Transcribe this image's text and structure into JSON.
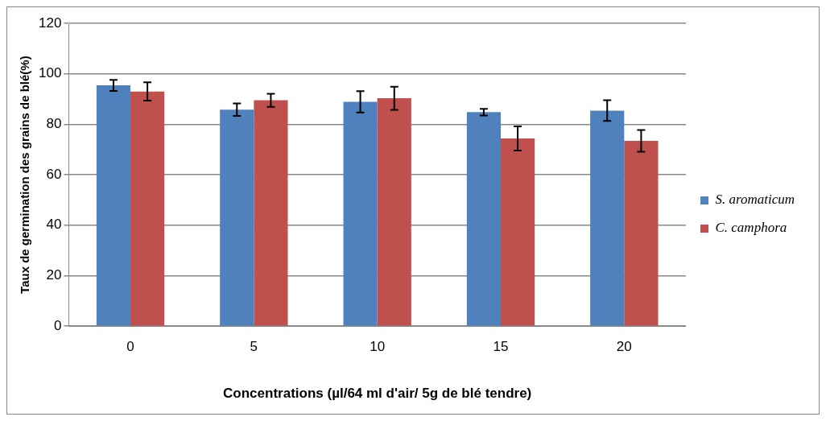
{
  "chart_data": {
    "type": "bar",
    "xlabel": "Concentrations (µl/64 ml d'air/ 5g de blé tendre)",
    "ylabel": "Taux de germination des grains de blé(%)",
    "categories": [
      "0",
      "5",
      "10",
      "15",
      "20"
    ],
    "series": [
      {
        "name": "S. aromaticum",
        "color": "#4f81bd",
        "values": [
          95.4,
          85.8,
          88.9,
          84.8,
          85.4
        ],
        "errors": [
          2.2,
          2.5,
          4.2,
          1.3,
          4.1
        ]
      },
      {
        "name": "C. camphora",
        "color": "#c0504d",
        "values": [
          93.0,
          89.5,
          90.3,
          74.4,
          73.4
        ],
        "errors": [
          3.6,
          2.6,
          4.6,
          4.8,
          4.3
        ]
      }
    ],
    "ylim": [
      0,
      120
    ],
    "yticks": [
      0,
      20,
      40,
      60,
      80,
      100,
      120
    ],
    "grid": "y",
    "legend": "right"
  }
}
